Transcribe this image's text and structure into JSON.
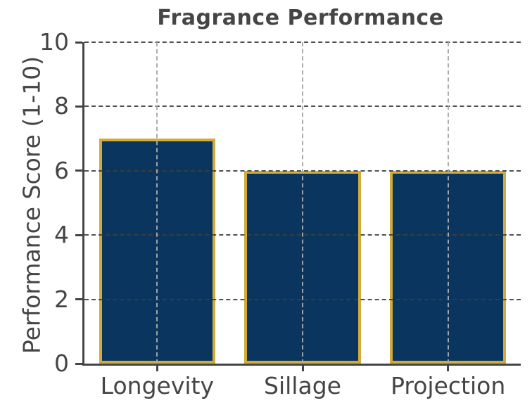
{
  "chart_data": {
    "type": "bar",
    "title": "Fragrance Performance",
    "xlabel": "",
    "ylabel": "Performance Score (1-10)",
    "categories": [
      "Longevity",
      "Sillage",
      "Projection"
    ],
    "values": [
      7,
      6,
      6
    ],
    "ylim": [
      0,
      10
    ],
    "yticks": [
      0,
      2,
      4,
      6,
      8,
      10
    ],
    "grid": "horizontal and vertical dashed gridlines drawn above bars",
    "legend": "none"
  },
  "colors": {
    "background": "#ffffff",
    "bar_fill": "#0a355e",
    "bar_edge": "#d1ac3b",
    "grid_horizontal": "#3e3e3e",
    "grid_vertical": "#a9a9a9",
    "axis": "#454545",
    "text": "#454545"
  }
}
